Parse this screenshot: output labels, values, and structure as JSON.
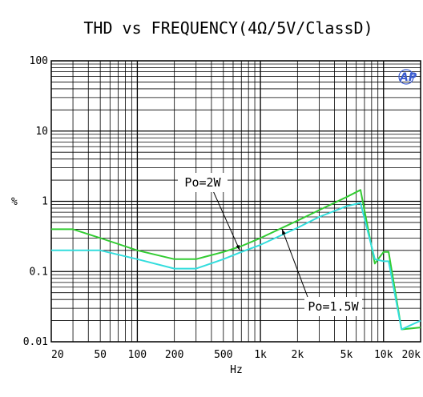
{
  "chart_data": {
    "type": "line",
    "title": "THD vs FREQUENCY(4Ω/5V/ClassD)",
    "xlabel": "Hz",
    "ylabel": "%",
    "x_scale": "log",
    "y_scale": "log",
    "xlim": [
      20,
      20000
    ],
    "ylim": [
      0.01,
      100
    ],
    "grid": true,
    "x_ticks": [
      {
        "value": 20,
        "label": "20"
      },
      {
        "value": 50,
        "label": "50"
      },
      {
        "value": 100,
        "label": "100"
      },
      {
        "value": 200,
        "label": "200"
      },
      {
        "value": 500,
        "label": "500"
      },
      {
        "value": 1000,
        "label": "1k"
      },
      {
        "value": 2000,
        "label": "2k"
      },
      {
        "value": 5000,
        "label": "5k"
      },
      {
        "value": 10000,
        "label": "10k"
      },
      {
        "value": 20000,
        "label": "20k"
      }
    ],
    "y_ticks": [
      {
        "value": 0.01,
        "label": "0.01"
      },
      {
        "value": 0.1,
        "label": "0.1"
      },
      {
        "value": 1,
        "label": "1"
      },
      {
        "value": 10,
        "label": "10"
      },
      {
        "value": 100,
        "label": "100"
      }
    ],
    "series": [
      {
        "color": "#33cc33",
        "x": [
          20,
          30,
          50,
          100,
          200,
          300,
          500,
          700,
          1000,
          2000,
          3000,
          5000,
          6500,
          8500,
          10000,
          11000,
          14000,
          20000
        ],
        "y": [
          0.4,
          0.4,
          0.3,
          0.2,
          0.15,
          0.15,
          0.19,
          0.23,
          0.3,
          0.53,
          0.75,
          1.15,
          1.45,
          0.13,
          0.19,
          0.19,
          0.015,
          0.016
        ]
      },
      {
        "color": "#33dddd",
        "x": [
          20,
          30,
          50,
          100,
          200,
          300,
          500,
          700,
          1000,
          2000,
          3000,
          5000,
          6500,
          8500,
          10000,
          11000,
          14000,
          20000
        ],
        "y": [
          0.2,
          0.2,
          0.2,
          0.15,
          0.11,
          0.11,
          0.15,
          0.19,
          0.24,
          0.42,
          0.6,
          0.85,
          0.95,
          0.15,
          0.14,
          0.14,
          0.015,
          0.02
        ]
      }
    ],
    "annotations": [
      {
        "text": "Po=2W",
        "target": {
          "x": 680,
          "y": 0.2
        }
      },
      {
        "text": "Po=1.5W",
        "target": {
          "x": 1500,
          "y": 0.4
        }
      }
    ],
    "logo_text": "AP"
  }
}
